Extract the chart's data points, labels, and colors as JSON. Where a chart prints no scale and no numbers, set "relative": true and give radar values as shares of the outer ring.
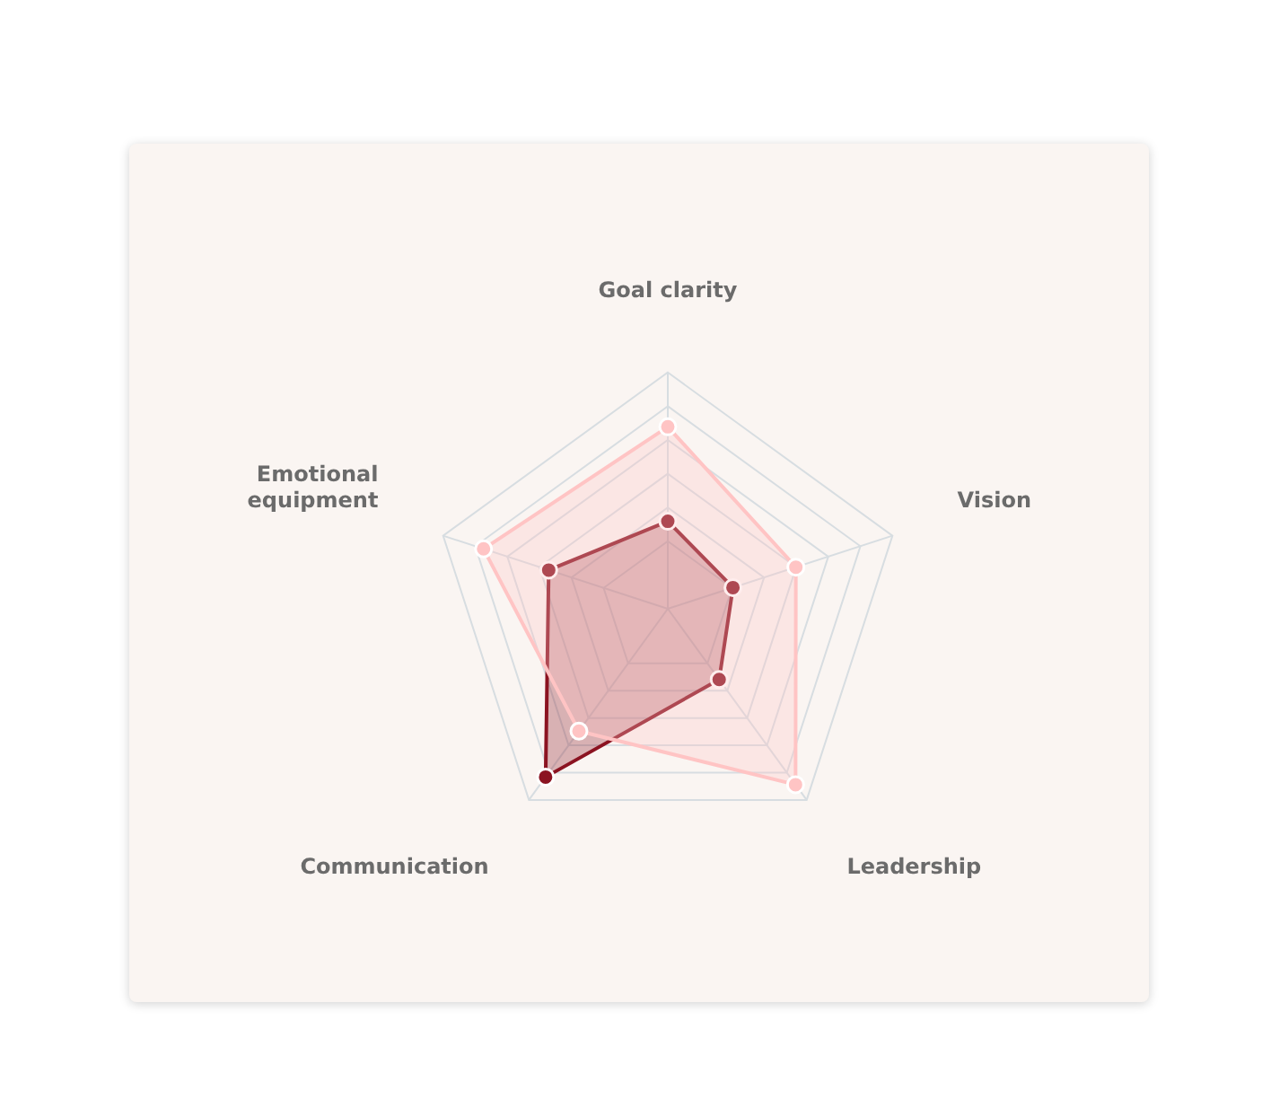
{
  "chart_data": {
    "type": "radar",
    "relative": true,
    "categories": [
      "Goal clarity",
      "Vision",
      "Leadership",
      "Communication",
      "Emotional\nequipment"
    ],
    "series": [
      {
        "color": "#ffc4c4",
        "values": [
          0.77,
          0.57,
          0.92,
          0.64,
          0.82
        ]
      },
      {
        "color": "#8b1321",
        "values": [
          0.37,
          0.29,
          0.37,
          0.88,
          0.53
        ]
      }
    ],
    "marker": "circle",
    "legend": false
  }
}
